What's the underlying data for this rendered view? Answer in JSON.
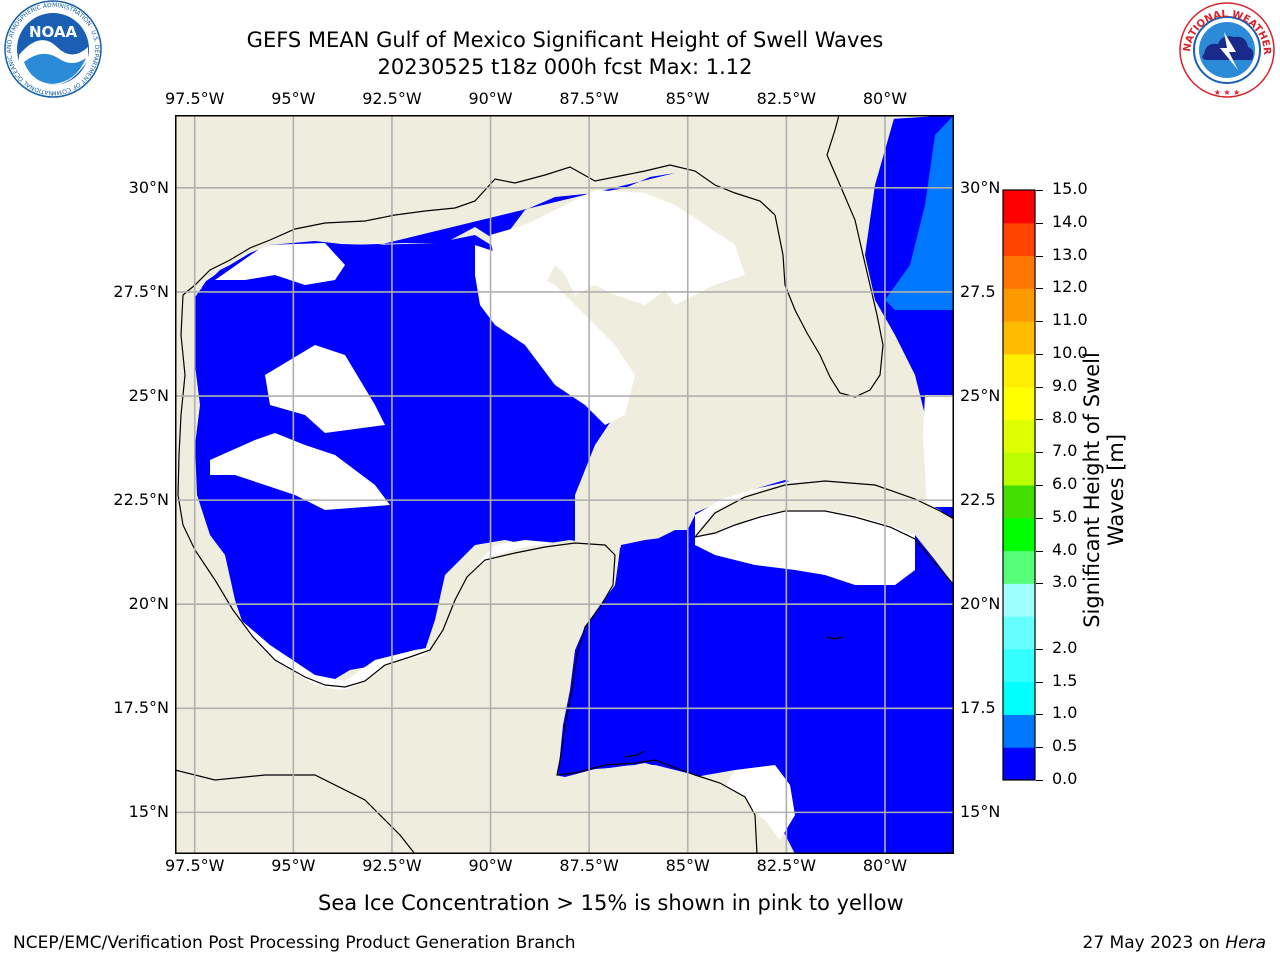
{
  "header": {
    "title_line1": "GEFS MEAN Gulf of Mexico Significant Height of Swell Waves",
    "title_line2": "20230525 t18z 000h fcst   Max: 1.12"
  },
  "logos": {
    "left": {
      "name": "noaa-logo",
      "text": "NOAA",
      "ring_text": "NATIONAL OCEANIC AND ATMOSPHERIC ADMINISTRATION · U.S. DEPARTMENT OF COMMERCE",
      "color": "#1560a8"
    },
    "right": {
      "name": "nws-logo",
      "ring_text": "NATIONAL WEATHER SERVICE",
      "color": "#d8232a"
    }
  },
  "map": {
    "extent": {
      "lon_min": -98,
      "lon_max": -78.25,
      "lat_min": 14,
      "lat_max": 31.75
    },
    "colors": {
      "land": "#efedde",
      "coast": "#000000",
      "grid": "#b0b0b0",
      "ocean_low": "#0000ff",
      "ocean_mid": "#0077ff",
      "ocean_high": "#00ffff",
      "nodata": "#ffffff"
    },
    "lon_ticks": [
      {
        "value": -97.5,
        "label": "97.5°W"
      },
      {
        "value": -95,
        "label": "95°W"
      },
      {
        "value": -92.5,
        "label": "92.5°W"
      },
      {
        "value": -90,
        "label": "90°W"
      },
      {
        "value": -87.5,
        "label": "87.5°W"
      },
      {
        "value": -85,
        "label": "85°W"
      },
      {
        "value": -82.5,
        "label": "82.5°W"
      },
      {
        "value": -80,
        "label": "80°W"
      }
    ],
    "lat_ticks": [
      {
        "value": 30,
        "label": "30°N"
      },
      {
        "value": 27.5,
        "label": "27.5°N"
      },
      {
        "value": 25,
        "label": "25°N"
      },
      {
        "value": 22.5,
        "label": "22.5°N"
      },
      {
        "value": 20,
        "label": "20°N"
      },
      {
        "value": 17.5,
        "label": "17.5°N"
      },
      {
        "value": 15,
        "label": "15°N"
      }
    ],
    "lat_ticks_right": [
      {
        "value": 30,
        "label": "30°N"
      },
      {
        "value": 27.5,
        "label": "27.5"
      },
      {
        "value": 25,
        "label": "25°N"
      },
      {
        "value": 22.5,
        "label": "22.5"
      },
      {
        "value": 20,
        "label": "20°N"
      },
      {
        "value": 17.5,
        "label": "17.5"
      },
      {
        "value": 15,
        "label": "15°N"
      }
    ]
  },
  "colorbar": {
    "label_line1": "Significant Height of Swell",
    "label_line2": "Waves [m]",
    "min": 0,
    "max": 15,
    "levels": [
      {
        "from": 0,
        "to": 0.5,
        "color": "#0000ff"
      },
      {
        "from": 0.5,
        "to": 1.0,
        "color": "#0077ff"
      },
      {
        "from": 1.0,
        "to": 1.5,
        "color": "#00ffff"
      },
      {
        "from": 1.5,
        "to": 2.0,
        "color": "#33ffff"
      },
      {
        "from": 2.0,
        "to": 2.5,
        "color": "#66ffff"
      },
      {
        "from": 2.5,
        "to": 3.0,
        "color": "#a0ffff"
      },
      {
        "from": 3.0,
        "to": 4.0,
        "color": "#55ff77"
      },
      {
        "from": 4.0,
        "to": 5.0,
        "color": "#00ff00"
      },
      {
        "from": 5.0,
        "to": 6.0,
        "color": "#44dd00"
      },
      {
        "from": 6.0,
        "to": 7.0,
        "color": "#bbff00"
      },
      {
        "from": 7.0,
        "to": 8.0,
        "color": "#ddff00"
      },
      {
        "from": 8.0,
        "to": 9.0,
        "color": "#ffff00"
      },
      {
        "from": 9.0,
        "to": 10.0,
        "color": "#ffee00"
      },
      {
        "from": 10.0,
        "to": 11.0,
        "color": "#ffbb00"
      },
      {
        "from": 11.0,
        "to": 12.0,
        "color": "#ff9900"
      },
      {
        "from": 12.0,
        "to": 13.0,
        "color": "#ff7700"
      },
      {
        "from": 13.0,
        "to": 14.0,
        "color": "#ff4400"
      },
      {
        "from": 14.0,
        "to": 15.0,
        "color": "#ff0000"
      }
    ],
    "ticks": [
      {
        "value": 15.0,
        "label": "15.0"
      },
      {
        "value": 14.0,
        "label": "14.0"
      },
      {
        "value": 13.0,
        "label": "13.0"
      },
      {
        "value": 12.0,
        "label": "12.0"
      },
      {
        "value": 11.0,
        "label": "11.0"
      },
      {
        "value": 10.0,
        "label": "10.0"
      },
      {
        "value": 9.0,
        "label": "9.0"
      },
      {
        "value": 8.0,
        "label": "8.0"
      },
      {
        "value": 7.0,
        "label": "7.0"
      },
      {
        "value": 6.0,
        "label": "6.0"
      },
      {
        "value": 5.0,
        "label": "5.0"
      },
      {
        "value": 4.0,
        "label": "4.0"
      },
      {
        "value": 3.0,
        "label": "3.0"
      },
      {
        "value": 2.0,
        "label": "2.0"
      },
      {
        "value": 1.5,
        "label": "1.5"
      },
      {
        "value": 1.0,
        "label": "1.0"
      },
      {
        "value": 0.5,
        "label": "0.5"
      },
      {
        "value": 0.0,
        "label": "0.0"
      }
    ]
  },
  "note": "Sea Ice Concentration > 15% is shown in pink to yellow",
  "footer": {
    "left": "NCEP/EMC/Verification Post Processing Product Generation Branch",
    "right_date": "27 May 2023 on ",
    "right_host": "Hera"
  }
}
